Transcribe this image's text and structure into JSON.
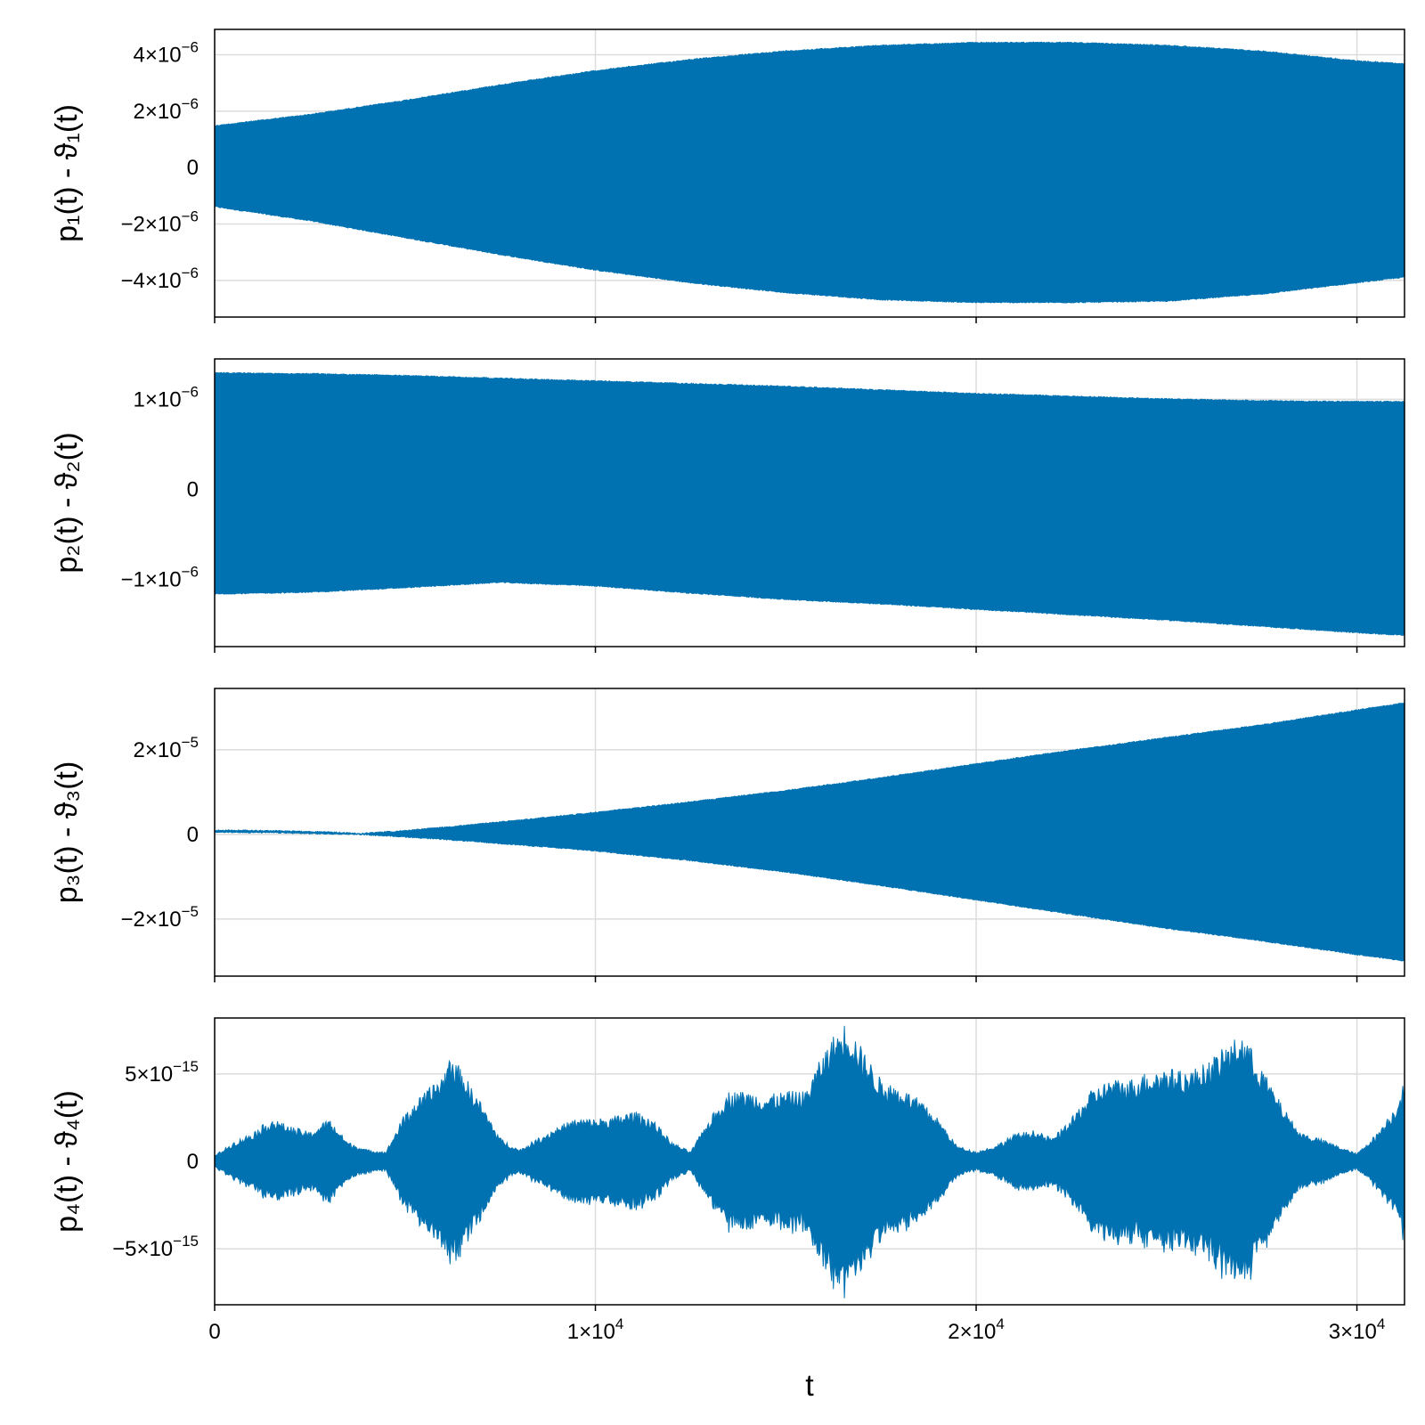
{
  "colors": {
    "series": "#0072b2",
    "grid": "#dcdcdc",
    "frame": "#000000"
  },
  "chart_data": [
    {
      "type": "area",
      "ylabel": "p₁(t) - ϑ₁(t)",
      "xlim": [
        0,
        31250
      ],
      "ylim": [
        -5.3e-06,
        4.9e-06
      ],
      "xticks": [
        {
          "v": 0
        },
        {
          "v": 10000
        },
        {
          "v": 20000
        },
        {
          "v": 30000
        }
      ],
      "yticks": [
        {
          "v": 4e-06,
          "m": "4×10",
          "e": "−6"
        },
        {
          "v": 2e-06,
          "m": "2×10",
          "e": "−6"
        },
        {
          "v": 0,
          "m": "0",
          "e": ""
        },
        {
          "v": -2e-06,
          "m": "−2×10",
          "e": "−6"
        },
        {
          "v": -4e-06,
          "m": "−4×10",
          "e": "−6"
        }
      ],
      "envelope": {
        "x": [
          0,
          2500,
          5000,
          7500,
          10000,
          12500,
          15000,
          17500,
          20000,
          22500,
          25000,
          27500,
          30000,
          31250
        ],
        "upper": [
          1.5e-06,
          1.9e-06,
          2.4e-06,
          2.95e-06,
          3.45e-06,
          3.85e-06,
          4.15e-06,
          4.35e-06,
          4.45e-06,
          4.45e-06,
          4.35e-06,
          4.15e-06,
          3.8e-06,
          3.7e-06
        ],
        "lower": [
          -1.4e-06,
          -1.9e-06,
          -2.5e-06,
          -3.1e-06,
          -3.65e-06,
          -4.1e-06,
          -4.45e-06,
          -4.7e-06,
          -4.8e-06,
          -4.8e-06,
          -4.75e-06,
          -4.5e-06,
          -4.1e-06,
          -3.9e-06
        ]
      }
    },
    {
      "type": "area",
      "ylabel": "p₂(t) - ϑ₂(t)",
      "xlim": [
        0,
        31250
      ],
      "ylim": [
        -1.75e-06,
        1.45e-06
      ],
      "xticks": [
        {
          "v": 0
        },
        {
          "v": 10000
        },
        {
          "v": 20000
        },
        {
          "v": 30000
        }
      ],
      "yticks": [
        {
          "v": 1e-06,
          "m": "1×10",
          "e": "−6"
        },
        {
          "v": 0,
          "m": "0",
          "e": ""
        },
        {
          "v": -1e-06,
          "m": "−1×10",
          "e": "−6"
        }
      ],
      "envelope": {
        "x": [
          0,
          2500,
          5000,
          7500,
          10000,
          12500,
          15000,
          17500,
          20000,
          22500,
          25000,
          27500,
          30000,
          31250
        ],
        "upper": [
          1.3e-06,
          1.29e-06,
          1.27e-06,
          1.24e-06,
          1.21e-06,
          1.18e-06,
          1.15e-06,
          1.11e-06,
          1.07e-06,
          1.04e-06,
          1.01e-06,
          9.9e-07,
          9.8e-07,
          9.8e-07
        ],
        "lower": [
          -1.17e-06,
          -1.15e-06,
          -1.1e-06,
          -1.04e-06,
          -1.08e-06,
          -1.16e-06,
          -1.23e-06,
          -1.28e-06,
          -1.34e-06,
          -1.4e-06,
          -1.46e-06,
          -1.53e-06,
          -1.6e-06,
          -1.63e-06
        ]
      }
    },
    {
      "type": "area",
      "ylabel": "p₃(t) - ϑ₃(t)",
      "xlim": [
        0,
        31250
      ],
      "ylim": [
        -3.35e-05,
        3.45e-05
      ],
      "xticks": [
        {
          "v": 0
        },
        {
          "v": 10000
        },
        {
          "v": 20000
        },
        {
          "v": 30000
        }
      ],
      "yticks": [
        {
          "v": 2e-05,
          "m": "2×10",
          "e": "−5"
        },
        {
          "v": 0,
          "m": "0",
          "e": ""
        },
        {
          "v": -2e-05,
          "m": "−2×10",
          "e": "−5"
        }
      ],
      "envelope": {
        "x": [
          0,
          1500,
          3000,
          3800,
          5000,
          6500,
          8000,
          10000,
          12500,
          15000,
          17500,
          20000,
          22500,
          25000,
          27500,
          30000,
          31250
        ],
        "upper": [
          1.1e-06,
          1e-06,
          7e-07,
          3e-07,
          1e-06,
          2.2e-06,
          3.5e-06,
          5.3e-06,
          7.8e-06,
          1.05e-05,
          1.35e-05,
          1.68e-05,
          2e-05,
          2.3e-05,
          2.6e-05,
          2.95e-05,
          3.12e-05
        ],
        "lower": [
          4e-07,
          3e-07,
          0.0,
          -1e-07,
          -7e-07,
          -1.6e-06,
          -2.6e-06,
          -4e-06,
          -6.3e-06,
          -9e-06,
          -1.22e-05,
          -1.56e-05,
          -1.9e-05,
          -2.23e-05,
          -2.53e-05,
          -2.85e-05,
          -3e-05
        ]
      }
    },
    {
      "type": "area",
      "ylabel": "p₄(t) - ϑ₄(t)",
      "xlabel": "t",
      "xlim": [
        0,
        31250
      ],
      "ylim": [
        -8.2e-15,
        8.2e-15
      ],
      "xticks": [
        {
          "v": 0,
          "m": "0",
          "e": ""
        },
        {
          "v": 10000,
          "m": "1×10",
          "e": "4"
        },
        {
          "v": 20000,
          "m": "2×10",
          "e": "4"
        },
        {
          "v": 30000,
          "m": "3×10",
          "e": "4"
        }
      ],
      "yticks": [
        {
          "v": 5e-15,
          "m": "5×10",
          "e": "−15"
        },
        {
          "v": 0,
          "m": "0",
          "e": ""
        },
        {
          "v": -5e-15,
          "m": "−5×10",
          "e": "−15"
        }
      ],
      "envelope": {
        "x": [
          0,
          500,
          1000,
          1500,
          2000,
          2500,
          3000,
          3500,
          4000,
          4500,
          5000,
          5500,
          6000,
          6200,
          6500,
          7000,
          7500,
          8000,
          8500,
          9000,
          9500,
          10000,
          10500,
          11000,
          11500,
          12000,
          12500,
          13000,
          13500,
          14000,
          14500,
          15000,
          15500,
          16000,
          16300,
          16600,
          17000,
          17500,
          18000,
          18500,
          19000,
          19500,
          20000,
          20500,
          21000,
          21500,
          22000,
          22500,
          23000,
          23500,
          24000,
          24500,
          25000,
          25500,
          26000,
          26500,
          27000,
          27500,
          28000,
          28500,
          29000,
          29500,
          30000,
          30500,
          31000,
          31250
        ],
        "amp": [
          3e-16,
          1e-15,
          1.5e-15,
          2.2e-15,
          1.8e-15,
          1.5e-15,
          2.2e-15,
          1e-15,
          6e-16,
          5e-16,
          2.5e-15,
          3.5e-15,
          4.5e-15,
          5.6e-15,
          4.6e-15,
          3e-15,
          1.2e-15,
          6e-16,
          1.2e-15,
          1.8e-15,
          2.2e-15,
          2.2e-15,
          2.3e-15,
          2.6e-15,
          2.2e-15,
          1e-15,
          5e-16,
          2.2e-15,
          3.6e-15,
          3.6e-15,
          3.4e-15,
          3.6e-15,
          3.6e-15,
          5.6e-15,
          6.6e-15,
          7.2e-15,
          5.8e-15,
          4.2e-15,
          3.8e-15,
          3.2e-15,
          2.2e-15,
          8e-16,
          5e-16,
          8e-16,
          1.4e-15,
          1.6e-15,
          1.2e-15,
          2.2e-15,
          3.6e-15,
          4.2e-15,
          4.2e-15,
          4.6e-15,
          4.8e-15,
          4.6e-15,
          5e-15,
          5.8e-15,
          6.6e-15,
          4.8e-15,
          3e-15,
          1.5e-15,
          1.2e-15,
          8e-16,
          4e-16,
          1.4e-15,
          2.8e-15,
          4.2e-15
        ]
      }
    }
  ]
}
